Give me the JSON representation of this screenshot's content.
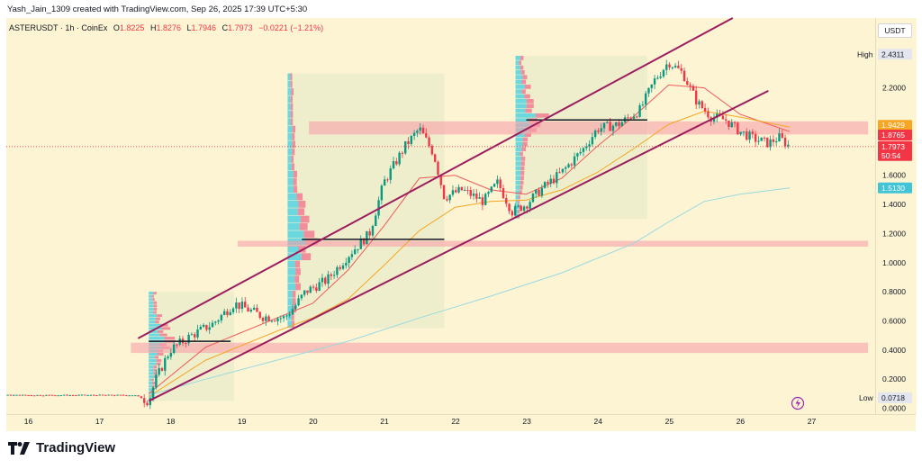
{
  "header": {
    "credit": "Yash_Jain_1309 created with TradingView.com, Sep 26, 2025 17:39 UTC+5:30",
    "symbol": "ASTERUSDT · 1h · CoinEx",
    "open_label": "O",
    "open": "1.8225",
    "high_label": "H",
    "high": "1.8276",
    "low_label": "L",
    "low": "1.7946",
    "close_label": "C",
    "close": "1.7973",
    "change": "−0.0221 (−1.21%)"
  },
  "currency": "USDT",
  "brand": "TradingView",
  "markers": {
    "high_label": "High",
    "high_value": "2.4311",
    "low_label": "Low",
    "low_value": "0.0718",
    "level_a": "1.9429",
    "level_b": "1.8765",
    "last_price": "1.7973",
    "countdown": "50:54",
    "ma_value": "1.5130"
  },
  "colors": {
    "background": "#fdf4d4",
    "up": "#089981",
    "down": "#f23645",
    "channel": "#9c1d5f",
    "zone": "#f6a0a8",
    "ema_fast": "#f05a5a",
    "ema_mid": "#f5a623",
    "ma_slow": "#9ad9e0",
    "vp_up": "#52d3e0",
    "vp_down": "#f27c8f"
  },
  "chart_data": {
    "type": "candlestick",
    "title": "ASTERUSDT · 1h · CoinEx",
    "xlabel": "",
    "ylabel": "USDT",
    "ylim": [
      -0.04,
      2.68
    ],
    "xlim": [
      15.7,
      27.9
    ],
    "y_ticks": [
      "0.0000",
      "0.2000",
      "0.4000",
      "0.6000",
      "0.8000",
      "1.0000",
      "1.2000",
      "1.4000",
      "1.6000",
      "2.2000"
    ],
    "y_tick_values": [
      0.0,
      0.2,
      0.4,
      0.6,
      0.8,
      1.0,
      1.2,
      1.4,
      1.6,
      2.2
    ],
    "x_ticks": [
      "16",
      "17",
      "18",
      "19",
      "20",
      "21",
      "22",
      "23",
      "24",
      "25",
      "26",
      "27"
    ],
    "x_tick_values": [
      16,
      17,
      18,
      19,
      20,
      21,
      22,
      23,
      24,
      25,
      26,
      27
    ],
    "price_path": [
      [
        15.7,
        0.09
      ],
      [
        16.5,
        0.09
      ],
      [
        17.5,
        0.09
      ],
      [
        17.7,
        0.05
      ],
      [
        17.8,
        0.2
      ],
      [
        18.0,
        0.4
      ],
      [
        18.3,
        0.5
      ],
      [
        18.6,
        0.58
      ],
      [
        18.9,
        0.72
      ],
      [
        19.0,
        0.7
      ],
      [
        19.3,
        0.63
      ],
      [
        19.6,
        0.62
      ],
      [
        19.75,
        0.7
      ],
      [
        19.9,
        0.8
      ],
      [
        20.2,
        0.88
      ],
      [
        20.5,
        1.05
      ],
      [
        20.8,
        1.2
      ],
      [
        21.0,
        1.55
      ],
      [
        21.3,
        1.8
      ],
      [
        21.5,
        1.92
      ],
      [
        21.7,
        1.75
      ],
      [
        21.85,
        1.45
      ],
      [
        22.1,
        1.5
      ],
      [
        22.4,
        1.42
      ],
      [
        22.6,
        1.55
      ],
      [
        22.8,
        1.35
      ],
      [
        23.0,
        1.4
      ],
      [
        23.2,
        1.5
      ],
      [
        23.5,
        1.62
      ],
      [
        23.8,
        1.78
      ],
      [
        24.0,
        1.92
      ],
      [
        24.3,
        1.95
      ],
      [
        24.6,
        2.05
      ],
      [
        24.8,
        2.25
      ],
      [
        25.0,
        2.38
      ],
      [
        25.2,
        2.3
      ],
      [
        25.4,
        2.1
      ],
      [
        25.6,
        2.0
      ],
      [
        25.8,
        1.98
      ],
      [
        26.0,
        1.9
      ],
      [
        26.2,
        1.85
      ],
      [
        26.4,
        1.82
      ],
      [
        26.55,
        1.86
      ],
      [
        26.7,
        1.7973
      ]
    ],
    "series": [
      {
        "name": "EMA fast",
        "x": [
          17.7,
          18.5,
          19.5,
          20.0,
          20.5,
          21.0,
          21.5,
          22.0,
          22.5,
          23.0,
          23.5,
          24.0,
          24.5,
          25.0,
          25.5,
          26.0,
          26.7
        ],
        "values": [
          0.1,
          0.42,
          0.62,
          0.72,
          0.95,
          1.25,
          1.58,
          1.6,
          1.5,
          1.47,
          1.58,
          1.8,
          2.0,
          2.22,
          2.2,
          2.02,
          1.9
        ]
      },
      {
        "name": "EMA mid",
        "x": [
          17.7,
          18.5,
          19.5,
          20.0,
          20.5,
          21.0,
          21.5,
          22.0,
          22.5,
          23.0,
          23.5,
          24.0,
          24.5,
          25.0,
          25.5,
          26.0,
          26.7
        ],
        "values": [
          0.08,
          0.33,
          0.53,
          0.62,
          0.75,
          0.98,
          1.22,
          1.38,
          1.42,
          1.43,
          1.5,
          1.62,
          1.78,
          1.95,
          2.04,
          2.0,
          1.93
        ]
      },
      {
        "name": "MA slow",
        "x": [
          17.7,
          18.5,
          19.5,
          20.5,
          21.5,
          22.5,
          23.5,
          24.5,
          25.0,
          25.5,
          26.0,
          26.7
        ],
        "values": [
          0.09,
          0.2,
          0.33,
          0.46,
          0.62,
          0.77,
          0.93,
          1.13,
          1.28,
          1.42,
          1.47,
          1.513
        ]
      }
    ],
    "channel_lines": [
      {
        "x": [
          17.55,
          25.9
        ],
        "values": [
          0.48,
          2.68
        ]
      },
      {
        "x": [
          17.7,
          26.4
        ],
        "values": [
          0.05,
          2.18
        ]
      }
    ],
    "zones": [
      {
        "y_from": 1.88,
        "y_to": 1.97,
        "x_from": 19.95,
        "x_to": 27.8
      },
      {
        "y_from": 1.11,
        "y_to": 1.15,
        "x_from": 18.95,
        "x_to": 27.8
      },
      {
        "y_from": 0.38,
        "y_to": 0.45,
        "x_from": 17.45,
        "x_to": 27.8
      }
    ],
    "poc_lines": [
      {
        "value": 0.46,
        "x_from": 17.7,
        "x_to": 18.85
      },
      {
        "value": 1.16,
        "x_from": 19.85,
        "x_to": 21.85
      },
      {
        "value": 1.98,
        "x_from": 23.0,
        "x_to": 24.7
      }
    ],
    "profile_boxes": [
      {
        "x_from": 17.7,
        "x_to": 18.9,
        "y_from": 0.05,
        "y_to": 0.8
      },
      {
        "x_from": 19.65,
        "x_to": 21.85,
        "y_from": 0.55,
        "y_to": 2.3
      },
      {
        "x_from": 22.85,
        "x_to": 24.7,
        "y_from": 1.3,
        "y_to": 2.42
      }
    ]
  }
}
